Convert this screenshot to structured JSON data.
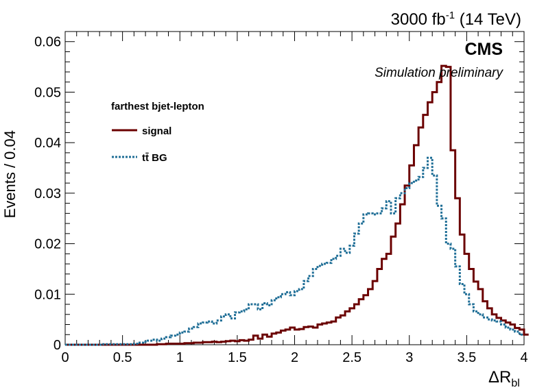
{
  "header": {
    "lumi_value": "3000 fb",
    "lumi_exp": "-1",
    "energy": "(14 TeV)",
    "experiment": "CMS",
    "status": "Simulation preliminary"
  },
  "chart_data": {
    "type": "line",
    "title": "",
    "xlabel_main": "ΔR",
    "xlabel_sub": "bl",
    "ylabel": "Events / 0.04",
    "xlim": [
      0,
      4
    ],
    "ylim": [
      0,
      0.062
    ],
    "x_ticks": [
      "0",
      "0.5",
      "1",
      "1.5",
      "2",
      "2.5",
      "3",
      "3.5",
      "4"
    ],
    "y_ticks": [
      "0",
      "0.01",
      "0.02",
      "0.03",
      "0.04",
      "0.05",
      "0.06"
    ],
    "bin_width": 0.04,
    "legend": {
      "header": "farthest bjet-lepton",
      "placement": "upper-left"
    },
    "series": [
      {
        "name": "signal",
        "color": "#6b0000",
        "style": "solid",
        "values": [
          0,
          0,
          0,
          0,
          0,
          0,
          0,
          0,
          0,
          0,
          0,
          0,
          0,
          0,
          0,
          0,
          0,
          0,
          0,
          0,
          0.0001,
          0.0001,
          0.0002,
          0.0002,
          0.0002,
          0.0002,
          0.0003,
          0.0003,
          0.0004,
          0.0004,
          0.0005,
          0.0005,
          0.0006,
          0.0005,
          0.0006,
          0.0007,
          0.0008,
          0.0007,
          0.0009,
          0.0008,
          0.001,
          0.0018,
          0.0012,
          0.002,
          0.0016,
          0.0022,
          0.0024,
          0.0028,
          0.003,
          0.0034,
          0.003,
          0.0031,
          0.0035,
          0.0036,
          0.0034,
          0.004,
          0.0042,
          0.0044,
          0.0046,
          0.0054,
          0.0058,
          0.0066,
          0.0072,
          0.008,
          0.009,
          0.0098,
          0.011,
          0.0126,
          0.015,
          0.017,
          0.018,
          0.0214,
          0.024,
          0.0278,
          0.0315,
          0.0355,
          0.0395,
          0.043,
          0.0455,
          0.048,
          0.05,
          0.052,
          0.0552,
          0.055,
          0.0385,
          0.029,
          0.0218,
          0.018,
          0.015,
          0.0125,
          0.011,
          0.0086,
          0.0072,
          0.006,
          0.0053,
          0.0048,
          0.0044,
          0.004,
          0.0033,
          0.003,
          0.002
        ]
      },
      {
        "name": "tt̄ BG",
        "color": "#1f6e96",
        "style": "dotted",
        "values": [
          0,
          0,
          0,
          0,
          0,
          0,
          0,
          0,
          0.0001,
          0.0001,
          0.0001,
          0.0001,
          0.0001,
          0.0001,
          0.0001,
          0.0002,
          0.0004,
          0.0006,
          0.0008,
          0.001,
          0.0008,
          0.0012,
          0.0015,
          0.0018,
          0.002,
          0.0024,
          0.0026,
          0.0032,
          0.0035,
          0.0042,
          0.0044,
          0.0046,
          0.0042,
          0.0048,
          0.0056,
          0.006,
          0.0052,
          0.0064,
          0.0066,
          0.007,
          0.008,
          0.008,
          0.007,
          0.0082,
          0.0078,
          0.0088,
          0.0094,
          0.01,
          0.0104,
          0.0098,
          0.0106,
          0.011,
          0.0126,
          0.0136,
          0.015,
          0.0156,
          0.016,
          0.0162,
          0.017,
          0.0176,
          0.019,
          0.0182,
          0.0196,
          0.022,
          0.024,
          0.0258,
          0.026,
          0.0258,
          0.026,
          0.027,
          0.0284,
          0.026,
          0.029,
          0.03,
          0.031,
          0.032,
          0.0325,
          0.0332,
          0.035,
          0.037,
          0.0335,
          0.0275,
          0.025,
          0.02,
          0.019,
          0.0155,
          0.012,
          0.01,
          0.008,
          0.0066,
          0.006,
          0.0054,
          0.005,
          0.0048,
          0.0046,
          0.004,
          0.0034,
          0.003,
          0.0026,
          0.002
        ]
      }
    ]
  }
}
